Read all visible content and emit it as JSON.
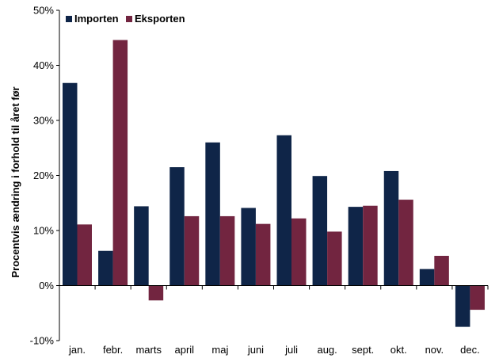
{
  "chart_data": {
    "type": "bar",
    "categories": [
      "jan.",
      "febr.",
      "marts",
      "april",
      "maj",
      "juni",
      "juli",
      "aug.",
      "sept.",
      "okt.",
      "nov.",
      "dec."
    ],
    "series": [
      {
        "name": "Importen",
        "color": "#0f2548",
        "values": [
          36.8,
          6.3,
          14.4,
          21.5,
          26.0,
          14.1,
          27.3,
          19.9,
          14.3,
          20.8,
          3.0,
          -7.5
        ]
      },
      {
        "name": "Eksporten",
        "color": "#722540",
        "values": [
          11.1,
          44.6,
          -2.7,
          12.6,
          12.6,
          11.2,
          12.2,
          9.8,
          14.5,
          15.6,
          5.4,
          -4.4
        ]
      }
    ],
    "ylabel": "Procentvis ændring i forhold til året før",
    "ylim": [
      -10,
      50
    ],
    "yticks": [
      -10,
      0,
      10,
      20,
      30,
      40,
      50
    ],
    "ytick_labels": [
      "-10%",
      "0%",
      "10%",
      "20%",
      "30%",
      "40%",
      "50%"
    ],
    "legend_position": "top-left",
    "grid": false
  }
}
